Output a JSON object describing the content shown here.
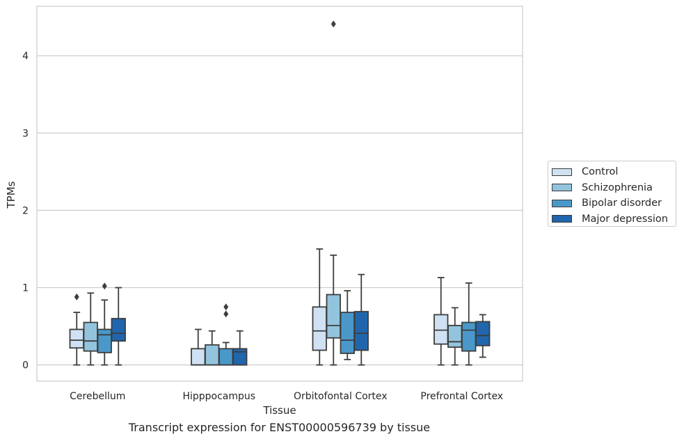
{
  "chart_data": {
    "type": "box",
    "xlabel": "Tissue",
    "ylabel": "TPMs",
    "caption": "Transcript expression for ENST00000596739 by tissue",
    "ylim": [
      -0.21,
      4.64
    ],
    "yticks": [
      0,
      1,
      2,
      3,
      4
    ],
    "grid": "horizontal",
    "legend_position": "right",
    "categories": [
      "Cerebellum",
      "Hipppocampus",
      "Orbitofontal Cortex",
      "Prefrontal Cortex"
    ],
    "series": [
      {
        "name": "Control",
        "color": "#cfe1f2",
        "boxes": [
          {
            "whislo": 0.0,
            "q1": 0.22,
            "med": 0.32,
            "q3": 0.46,
            "whishi": 0.68,
            "fliers": [
              0.88
            ]
          },
          {
            "whislo": 0.0,
            "q1": 0.0,
            "med": 0.0,
            "q3": 0.21,
            "whishi": 0.46,
            "fliers": []
          },
          {
            "whislo": 0.0,
            "q1": 0.19,
            "med": 0.44,
            "q3": 0.75,
            "whishi": 1.5,
            "fliers": []
          },
          {
            "whislo": 0.0,
            "q1": 0.27,
            "med": 0.45,
            "q3": 0.65,
            "whishi": 1.13,
            "fliers": []
          }
        ]
      },
      {
        "name": "Schizophrenia",
        "color": "#93c4de",
        "boxes": [
          {
            "whislo": 0.0,
            "q1": 0.18,
            "med": 0.31,
            "q3": 0.55,
            "whishi": 0.93,
            "fliers": []
          },
          {
            "whislo": 0.0,
            "q1": 0.0,
            "med": 0.0,
            "q3": 0.26,
            "whishi": 0.44,
            "fliers": []
          },
          {
            "whislo": 0.0,
            "q1": 0.35,
            "med": 0.51,
            "q3": 0.91,
            "whishi": 1.42,
            "fliers": [
              4.41
            ]
          },
          {
            "whislo": 0.0,
            "q1": 0.23,
            "med": 0.3,
            "q3": 0.51,
            "whishi": 0.74,
            "fliers": []
          }
        ]
      },
      {
        "name": "Bipolar disorder",
        "color": "#4a98c9",
        "boxes": [
          {
            "whislo": 0.0,
            "q1": 0.16,
            "med": 0.39,
            "q3": 0.46,
            "whishi": 0.84,
            "fliers": [
              1.02
            ]
          },
          {
            "whislo": 0.0,
            "q1": 0.0,
            "med": 0.0,
            "q3": 0.21,
            "whishi": 0.29,
            "fliers": [
              0.66,
              0.75
            ]
          },
          {
            "whislo": 0.07,
            "q1": 0.15,
            "med": 0.32,
            "q3": 0.68,
            "whishi": 0.96,
            "fliers": []
          },
          {
            "whislo": 0.0,
            "q1": 0.18,
            "med": 0.45,
            "q3": 0.55,
            "whishi": 1.06,
            "fliers": []
          }
        ]
      },
      {
        "name": "Major depression",
        "color": "#2166ac",
        "boxes": [
          {
            "whislo": 0.0,
            "q1": 0.31,
            "med": 0.41,
            "q3": 0.6,
            "whishi": 1.0,
            "fliers": []
          },
          {
            "whislo": 0.0,
            "q1": 0.0,
            "med": 0.17,
            "q3": 0.21,
            "whishi": 0.44,
            "fliers": []
          },
          {
            "whislo": 0.0,
            "q1": 0.19,
            "med": 0.41,
            "q3": 0.69,
            "whishi": 1.17,
            "fliers": []
          },
          {
            "whislo": 0.1,
            "q1": 0.25,
            "med": 0.38,
            "q3": 0.56,
            "whishi": 0.65,
            "fliers": []
          }
        ]
      }
    ]
  }
}
